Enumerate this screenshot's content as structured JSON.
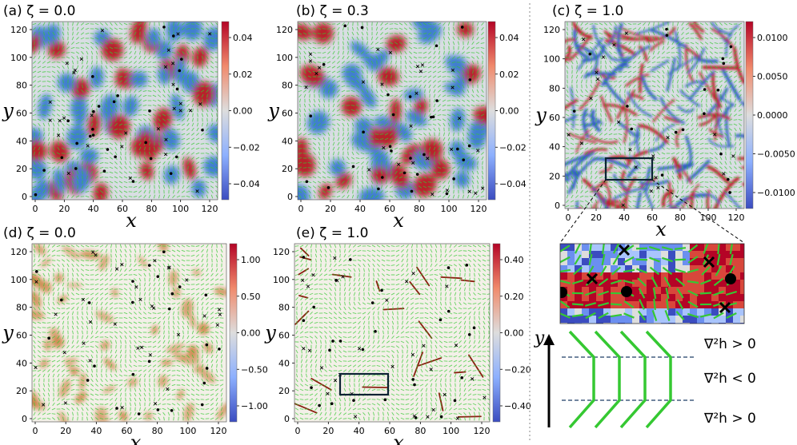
{
  "figure": {
    "panels": [
      {
        "id": "a",
        "title": "(a) ζ = 0.0",
        "xlabel": "x",
        "ylabel": "y",
        "x_ticks": [
          "0",
          "20",
          "40",
          "60",
          "80",
          "100",
          "120"
        ],
        "y_ticks": [
          "0",
          "20",
          "40",
          "60",
          "80",
          "100",
          "120"
        ],
        "colorbar_ticks": [
          "0.04",
          "0.02",
          "0.00",
          "−0.02",
          "−0.04"
        ]
      },
      {
        "id": "b",
        "title": "(b) ζ = 0.3",
        "xlabel": "x",
        "ylabel": "y",
        "x_ticks": [
          "0",
          "20",
          "40",
          "60",
          "80",
          "100",
          "120"
        ],
        "y_ticks": [
          "0",
          "20",
          "40",
          "60",
          "80",
          "100",
          "120"
        ],
        "colorbar_ticks": [
          "0.04",
          "0.02",
          "0.00",
          "−0.02",
          "−0.04"
        ]
      },
      {
        "id": "c",
        "title": "(c) ζ = 1.0",
        "xlabel": "x",
        "ylabel": "y",
        "x_ticks": [
          "0",
          "20",
          "40",
          "60",
          "80",
          "100",
          "120"
        ],
        "y_ticks": [
          "0",
          "20",
          "40",
          "60",
          "80",
          "100",
          "120"
        ],
        "colorbar_ticks": [
          "0.0100",
          "0.0050",
          "0.0000",
          "−0.0050",
          "−0.0100"
        ]
      },
      {
        "id": "d",
        "title": "(d) ζ = 0.0",
        "xlabel": "x",
        "ylabel": "y",
        "x_ticks": [
          "0",
          "20",
          "40",
          "60",
          "80",
          "100",
          "120"
        ],
        "y_ticks": [
          "0",
          "20",
          "40",
          "60",
          "80",
          "100",
          "120"
        ],
        "colorbar_ticks": [
          "1.00",
          "0.50",
          "0.00",
          "−0.50",
          "−1.00"
        ]
      },
      {
        "id": "e",
        "title": "(e) ζ = 1.0",
        "xlabel": "x",
        "ylabel": "y",
        "x_ticks": [
          "0",
          "20",
          "40",
          "60",
          "80",
          "100",
          "120"
        ],
        "y_ticks": [
          "0",
          "20",
          "40",
          "60",
          "80",
          "100",
          "120"
        ],
        "colorbar_ticks": [
          "0.40",
          "0.20",
          "0.00",
          "−0.20",
          "−0.40"
        ]
      }
    ],
    "schematic": {
      "y_axis_label": "y",
      "region_labels": [
        "∇²h > 0",
        "∇²h < 0",
        "∇²h > 0"
      ]
    },
    "colors": {
      "red": "#b40426",
      "blue": "#3b4cc0",
      "neutral": "#dddddd",
      "director_green": "#35c832",
      "box": "#0b2233"
    }
  }
}
